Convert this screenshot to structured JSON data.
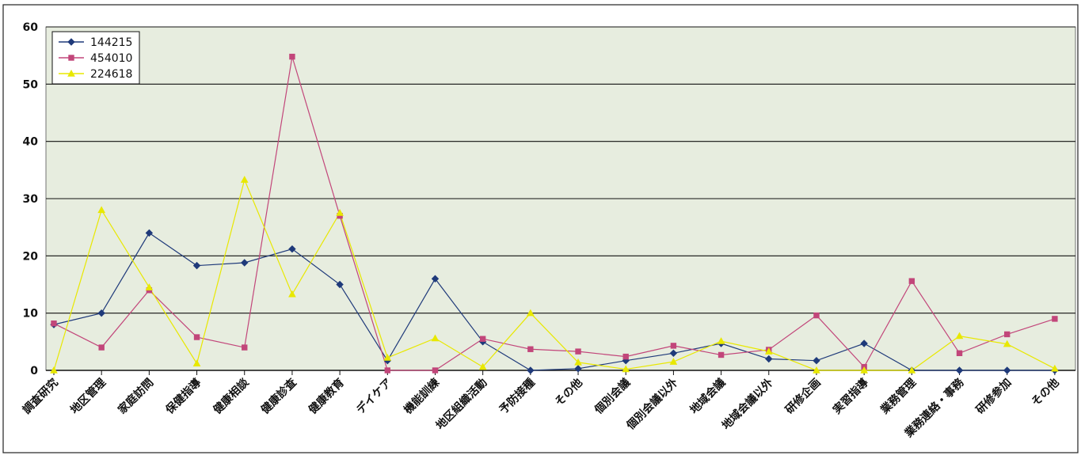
{
  "chart_data": {
    "type": "line",
    "categories": [
      "調査研究",
      "地区管理",
      "家庭訪問",
      "保健指導",
      "健康相談",
      "健康診査",
      "健康教育",
      "デイケア",
      "機能訓練",
      "地区組織活動",
      "予防接種",
      "その他",
      "個別会議",
      "個別会議以外",
      "地域会議",
      "地域会議以外",
      "研修企画",
      "実習指導",
      "業務管理",
      "業務連絡・事務",
      "研修参加",
      "その他"
    ],
    "ylim": [
      0,
      60
    ],
    "yticks": [
      0,
      10,
      20,
      30,
      40,
      50,
      60
    ],
    "grid": true,
    "legend_position": "top-left",
    "series": [
      {
        "name": "144215",
        "color": "#1f3a7a",
        "marker": "diamond",
        "values": [
          8,
          10,
          24,
          18.3,
          18.8,
          21.2,
          15,
          1.7,
          16,
          5,
          0,
          0.3,
          1.7,
          3,
          4.7,
          2,
          1.7,
          4.7,
          0,
          0,
          0,
          0
        ]
      },
      {
        "name": "454010",
        "color": "#c2467a",
        "marker": "square",
        "values": [
          8.2,
          4,
          14,
          5.8,
          4,
          54.8,
          27,
          0,
          0,
          5.5,
          3.7,
          3.3,
          2.4,
          4.3,
          2.7,
          3.6,
          9.6,
          0.6,
          15.6,
          3,
          6.3,
          9
        ]
      },
      {
        "name": "224618",
        "color": "#e8e800",
        "marker": "triangle",
        "values": [
          0,
          28,
          14.5,
          1.2,
          33.3,
          13.3,
          27.5,
          2.2,
          5.6,
          0.6,
          10,
          1.4,
          0.2,
          1.5,
          5.1,
          3.3,
          0,
          0,
          0,
          6,
          4.6,
          0.3
        ]
      }
    ]
  }
}
